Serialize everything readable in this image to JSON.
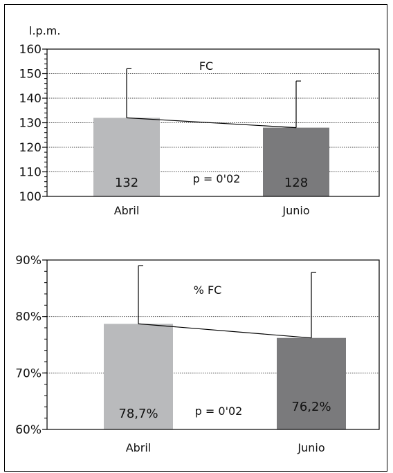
{
  "chart_data": [
    {
      "type": "bar",
      "title": "FC",
      "ylabel": "l.p.m.",
      "categories": [
        "Abril",
        "Junio"
      ],
      "values": [
        132,
        128
      ],
      "error_upper": [
        152,
        147
      ],
      "data_labels": [
        "132",
        "128"
      ],
      "annotation": "p = 0'02",
      "ylim": [
        100,
        160
      ],
      "yticks": [
        "100",
        "110",
        "120",
        "130",
        "140",
        "150",
        "160"
      ],
      "grid": true,
      "connecting_line": true,
      "colors": [
        "#b9babc",
        "#7a7a7c"
      ]
    },
    {
      "type": "bar",
      "title": "% FC",
      "ylabel": "",
      "categories": [
        "Abril",
        "Junio"
      ],
      "values": [
        78.7,
        76.2
      ],
      "error_upper": [
        89,
        87.8
      ],
      "data_labels": [
        "78,7%",
        "76,2%"
      ],
      "annotation": "p = 0'02",
      "ylim": [
        60,
        90
      ],
      "yticks": [
        "60%",
        "70%",
        "80%",
        "90%"
      ],
      "grid": true,
      "connecting_line": true,
      "colors": [
        "#b9babc",
        "#7a7a7c"
      ]
    }
  ]
}
